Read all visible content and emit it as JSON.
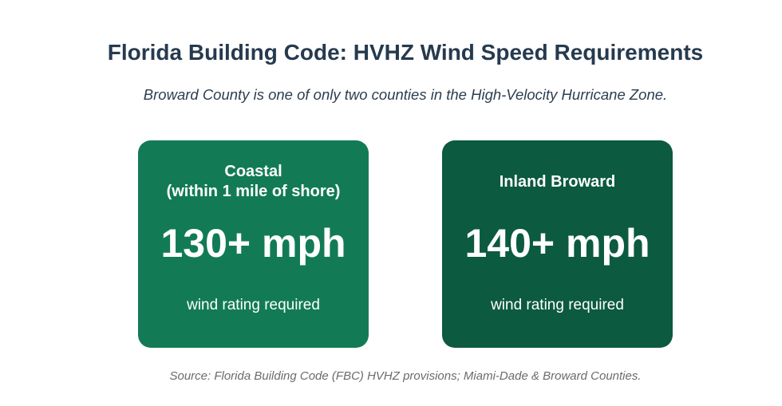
{
  "header": {
    "title": "Florida Building Code: HVHZ Wind Speed Requirements",
    "subtitle": "Broward County is one of only two counties in the High-Velocity Hurricane Zone."
  },
  "cards": [
    {
      "label": [
        "Coastal",
        "(within 1 mile of shore)"
      ],
      "value": "130+ mph",
      "note": "wind rating required"
    },
    {
      "label": [
        "Inland Broward"
      ],
      "value": "140+ mph",
      "note": "wind rating required"
    }
  ],
  "source": "Source: Florida Building Code (FBC) HVHZ provisions; Miami-Dade & Broward Counties."
}
